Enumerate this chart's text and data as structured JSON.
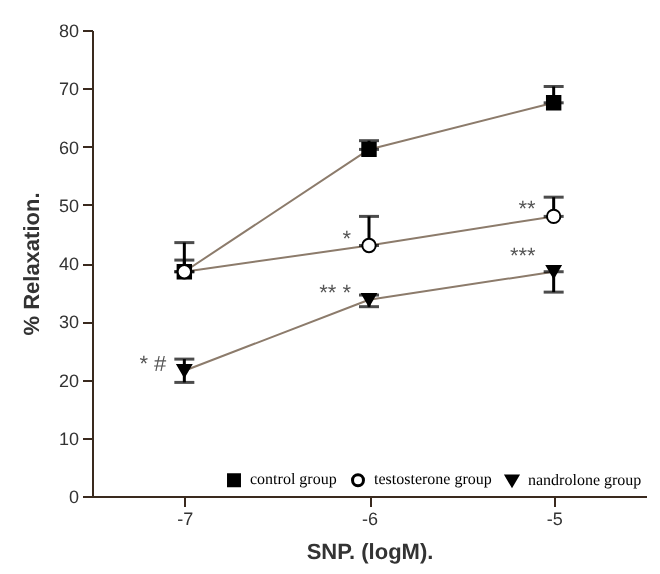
{
  "chart_data": {
    "type": "line",
    "xlabel": "SNP. (logM).",
    "ylabel": "% Relaxation.",
    "x": [
      -7,
      -6,
      -5
    ],
    "xlim": [
      -7.5,
      -4.5
    ],
    "xticks": [
      -7,
      -6,
      -5
    ],
    "ylim": [
      0,
      80
    ],
    "yticks": [
      0,
      10,
      20,
      30,
      40,
      50,
      60,
      70,
      80
    ],
    "grid": false,
    "legend": "bottom right",
    "series": [
      {
        "name": "control group",
        "color": "#000000",
        "marker": "square",
        "values": [
          38.5,
          59.5,
          67.5
        ],
        "errors": [
          [
            38.5,
            40.5
          ],
          [
            59.5,
            61
          ],
          [
            67.5,
            70.3
          ]
        ]
      },
      {
        "name": "testosterone group",
        "color": "#000000",
        "marker": "circle",
        "values": [
          38.5,
          43,
          48
        ],
        "errors": [
          [
            38.5,
            43.5
          ],
          [
            43,
            48
          ],
          [
            48,
            51.3
          ]
        ]
      },
      {
        "name": "nandrolone group",
        "color": "#000000",
        "marker": "triangle",
        "values": [
          21.5,
          33.7,
          38.5
        ],
        "errors": [
          [
            19.5,
            23.5
          ],
          [
            32.5,
            34.5
          ],
          [
            35,
            38.5
          ]
        ]
      }
    ],
    "annotations": [
      {
        "text": "*",
        "x": -6,
        "y": 43
      },
      {
        "text": "**",
        "x": -5,
        "y": 48
      },
      {
        "text": "* #",
        "x": -7,
        "y": 21.5
      },
      {
        "text": "** *",
        "x": -6,
        "y": 33.7
      },
      {
        "text": "***",
        "x": -5,
        "y": 40
      }
    ]
  }
}
